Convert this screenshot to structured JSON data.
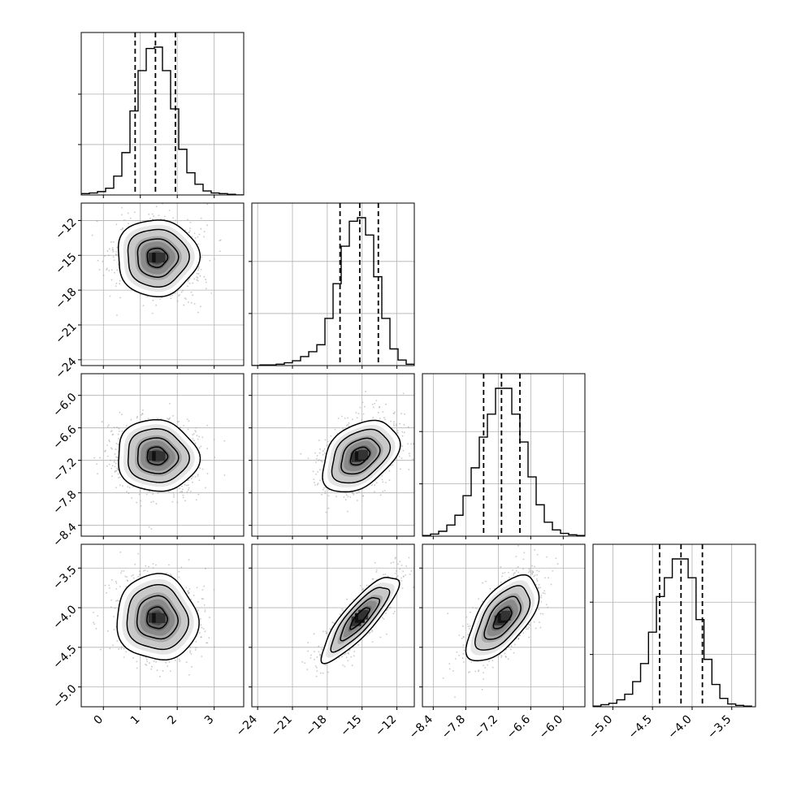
{
  "chart_data": {
    "type": "corner",
    "grid": true,
    "parameters": [
      {
        "id": "p1",
        "range": [
          -0.6,
          3.8
        ],
        "ticks": [
          0,
          1,
          2,
          3
        ],
        "tick_labels": [
          "0",
          "1",
          "2",
          "3"
        ]
      },
      {
        "id": "p2",
        "range": [
          -24.5,
          -10.5
        ],
        "ticks": [
          -24,
          -21,
          -18,
          -15,
          -12
        ],
        "tick_labels": [
          "−24",
          "−21",
          "−18",
          "−15",
          "−12"
        ]
      },
      {
        "id": "p3",
        "range": [
          -8.6,
          -5.6
        ],
        "ticks": [
          -8.4,
          -7.8,
          -7.2,
          -6.6,
          -6.0
        ],
        "tick_labels": [
          "−8.4",
          "−7.8",
          "−7.2",
          "−6.6",
          "−6.0"
        ]
      },
      {
        "id": "p4",
        "range": [
          -5.25,
          -3.2
        ],
        "ticks": [
          -5.0,
          -4.5,
          -4.0,
          -3.5
        ],
        "tick_labels": [
          "−5.0",
          "−4.5",
          "−4.0",
          "−3.5"
        ]
      }
    ],
    "marginals": [
      {
        "param": "p1",
        "quantiles": [
          0.86,
          1.41,
          1.95
        ],
        "bins": [
          -0.6,
          -0.38,
          -0.16,
          0.06,
          0.28,
          0.5,
          0.72,
          0.94,
          1.16,
          1.38,
          1.6,
          1.82,
          2.04,
          2.26,
          2.48,
          2.7,
          2.92,
          3.14,
          3.36,
          3.58,
          3.8
        ],
        "counts": [
          2,
          3,
          5,
          10,
          28,
          63,
          125,
          185,
          218,
          220,
          185,
          128,
          68,
          33,
          16,
          6,
          3,
          2,
          1,
          0
        ]
      },
      {
        "param": "p2",
        "quantiles": [
          -16.9,
          -15.2,
          -13.6
        ],
        "bins": [
          -24.5,
          -23.8,
          -23.1,
          -22.4,
          -21.7,
          -21.0,
          -20.3,
          -19.6,
          -18.9,
          -18.2,
          -17.5,
          -16.8,
          -16.1,
          -15.4,
          -14.7,
          -14.0,
          -13.3,
          -12.6,
          -11.9,
          -11.2,
          -10.5
        ],
        "counts": [
          0,
          1,
          1,
          2,
          4,
          7,
          13,
          20,
          30,
          68,
          118,
          172,
          208,
          213,
          188,
          128,
          68,
          24,
          8,
          2
        ]
      },
      {
        "param": "p3",
        "quantiles": [
          -7.47,
          -7.14,
          -6.8
        ],
        "bins": [
          -8.6,
          -8.45,
          -8.3,
          -8.15,
          -8.0,
          -7.85,
          -7.7,
          -7.55,
          -7.4,
          -7.25,
          -7.1,
          -6.95,
          -6.8,
          -6.65,
          -6.5,
          -6.35,
          -6.2,
          -6.05,
          -5.9,
          -5.75,
          -5.6
        ],
        "counts": [
          1,
          3,
          7,
          16,
          30,
          58,
          98,
          142,
          175,
          212,
          212,
          175,
          135,
          85,
          45,
          20,
          9,
          4,
          2,
          1
        ]
      },
      {
        "param": "p4",
        "quantiles": [
          -4.41,
          -4.14,
          -3.87
        ],
        "bins": [
          -5.25,
          -5.15,
          -5.05,
          -4.95,
          -4.85,
          -4.75,
          -4.65,
          -4.55,
          -4.45,
          -4.35,
          -4.25,
          -4.15,
          -4.05,
          -3.95,
          -3.85,
          -3.75,
          -3.65,
          -3.55,
          -3.45,
          -3.35,
          -3.25
        ],
        "counts": [
          1,
          3,
          5,
          10,
          18,
          36,
          62,
          107,
          158,
          185,
          212,
          212,
          185,
          125,
          68,
          32,
          12,
          4,
          2,
          1
        ]
      }
    ],
    "pairs": [
      {
        "x": "p1",
        "y": "p2",
        "center": [
          1.45,
          -15.2
        ],
        "rho": 0.0
      },
      {
        "x": "p1",
        "y": "p3",
        "center": [
          1.45,
          -7.12
        ],
        "rho": -0.05
      },
      {
        "x": "p2",
        "y": "p3",
        "center": [
          -15.2,
          -7.12
        ],
        "rho": 0.38
      },
      {
        "x": "p1",
        "y": "p4",
        "center": [
          1.45,
          -4.13
        ],
        "rho": -0.05
      },
      {
        "x": "p2",
        "y": "p4",
        "center": [
          -15.2,
          -4.13
        ],
        "rho": 0.85
      },
      {
        "x": "p3",
        "y": "p4",
        "center": [
          -7.12,
          -4.13
        ],
        "rho": 0.62
      }
    ],
    "sigmas": {
      "p1": 0.55,
      "p2": 1.65,
      "p3": 0.33,
      "p4": 0.27
    },
    "contour_levels": [
      0.5,
      1.0,
      1.5,
      2.0
    ],
    "colors": {
      "line": "#000000",
      "grid": "#b0b0b0",
      "points": "#9a9a9a",
      "fill": "#ffffff"
    }
  }
}
